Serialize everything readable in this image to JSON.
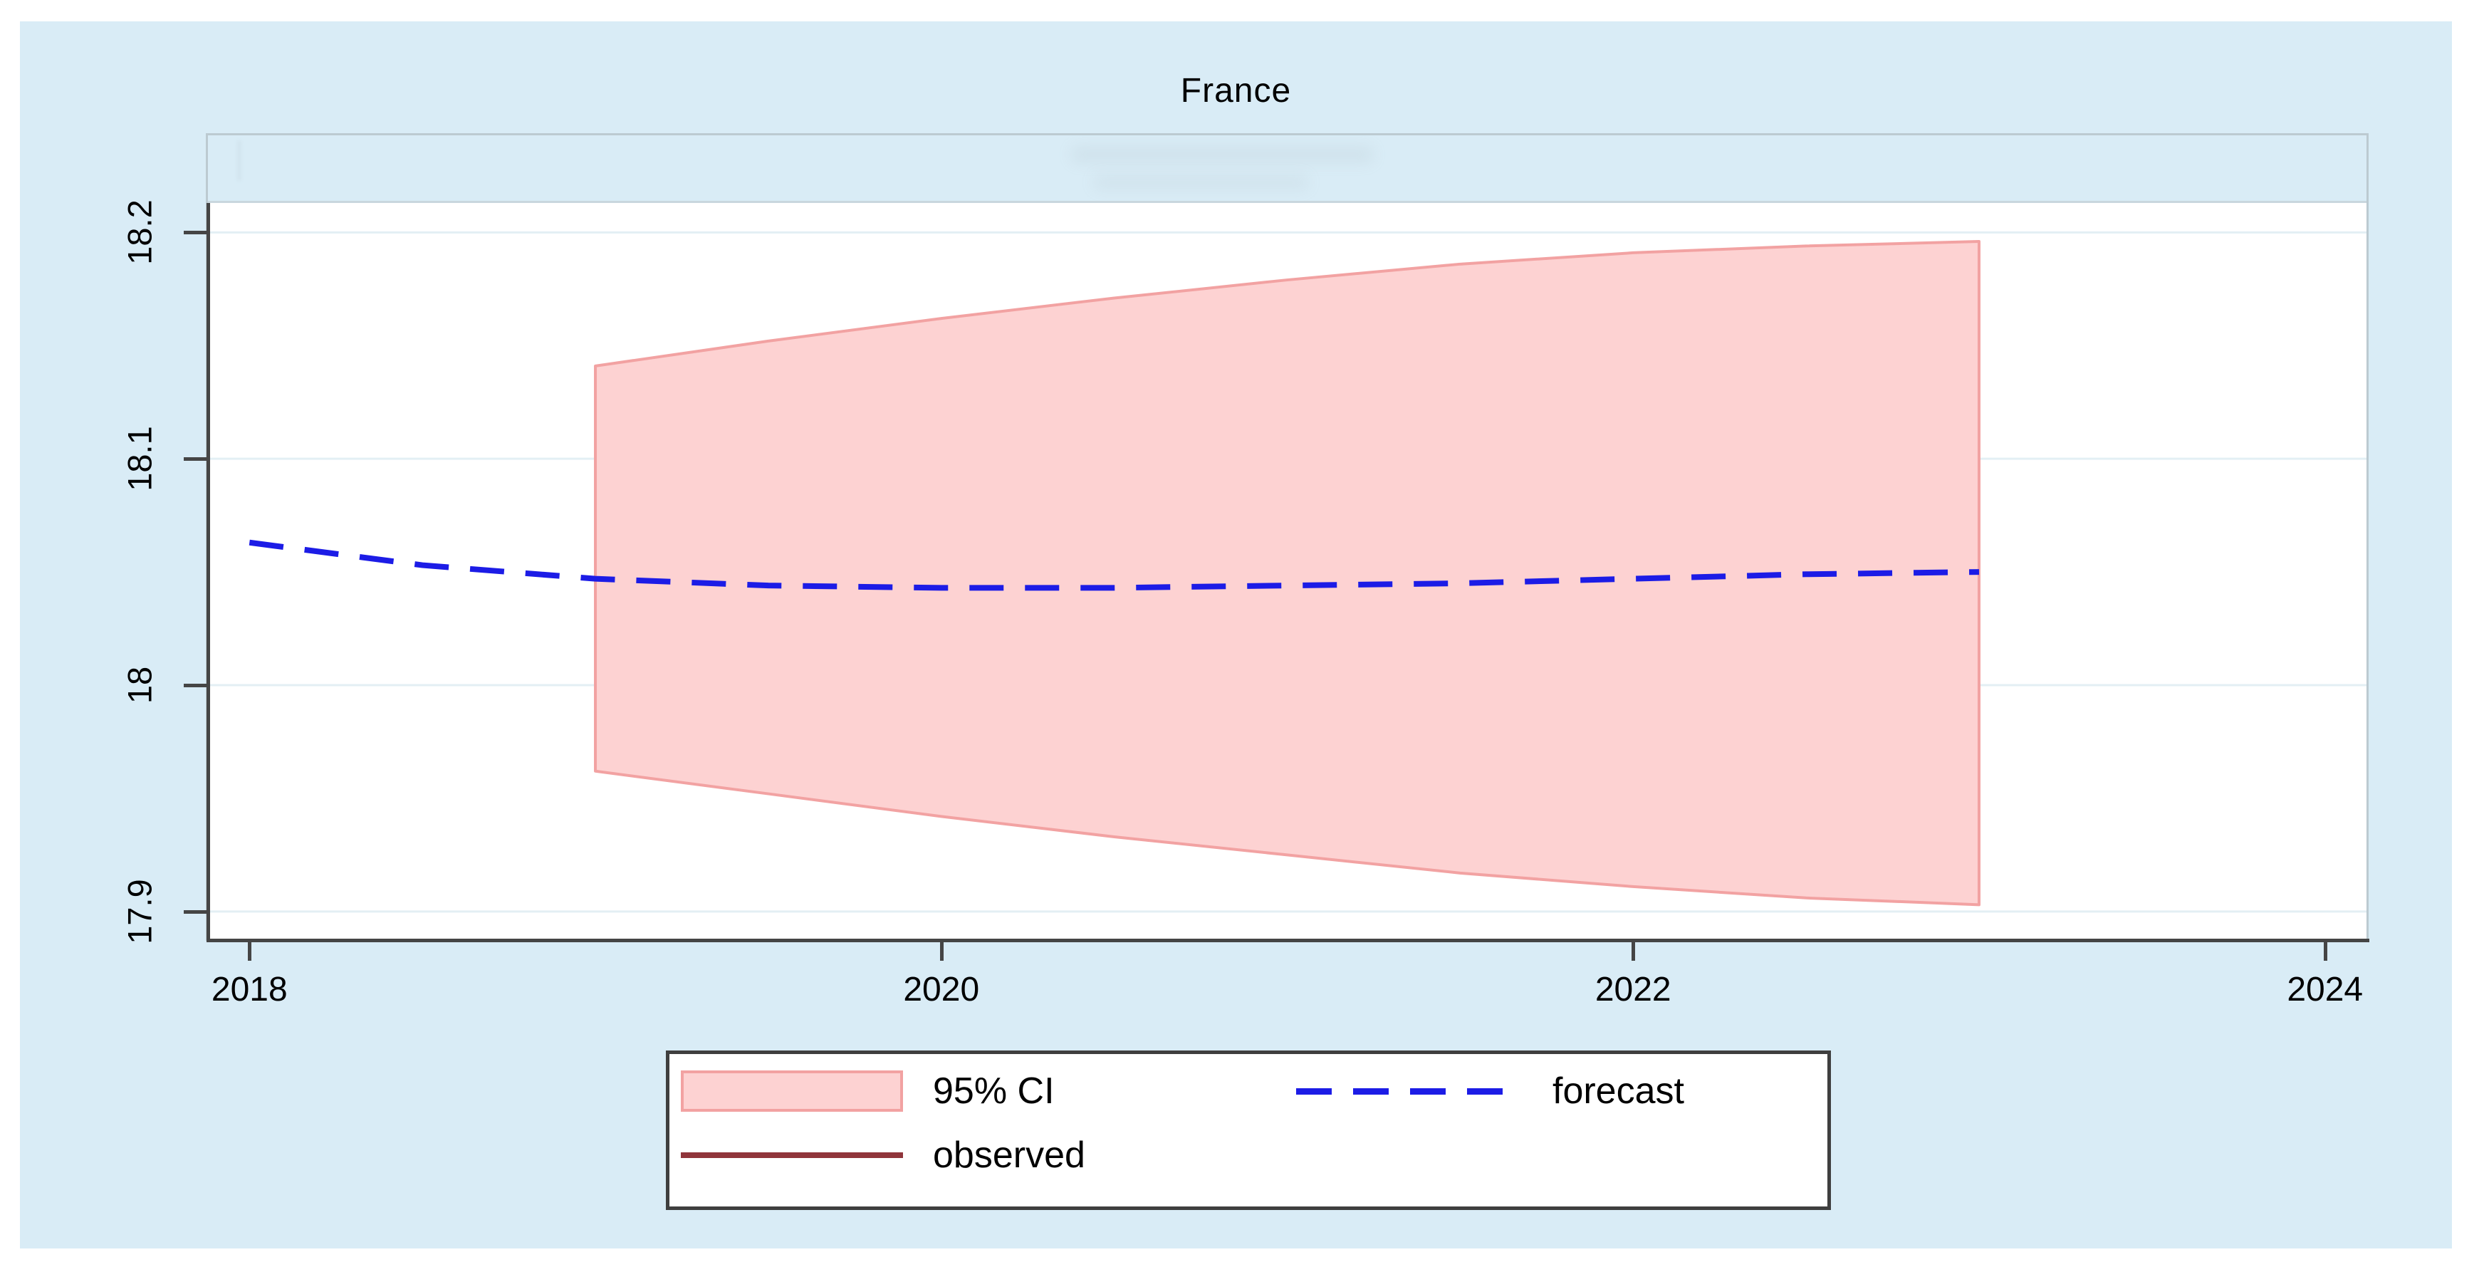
{
  "chart": {
    "title": "France"
  },
  "axes": {
    "y_tick_labels": [
      "18.2",
      "18.1",
      "18",
      "17.9"
    ],
    "x_tick_labels": [
      "2018",
      "2020",
      "2022",
      "2024"
    ]
  },
  "legend": {
    "items": [
      {
        "id": "ci",
        "label": "95% CI",
        "swatch": "pink-area-swatch"
      },
      {
        "id": "forecast",
        "label": "forecast",
        "swatch": "blue-dashed-line-swatch"
      },
      {
        "id": "observed",
        "label": "observed",
        "swatch": "maroon-solid-line-swatch"
      }
    ]
  },
  "colors": {
    "panel_background": "#d9ecf6",
    "plot_background": "#ffffff",
    "frame": "#bccad1",
    "axis": "#454545",
    "gridline": "#e3eff4",
    "text": "#000000",
    "ci_fill": "#fdd2d2",
    "ci_stroke": "#f2a2a2",
    "forecast_line": "#1c1ce6",
    "observed_line": "#90353b"
  },
  "chart_data": {
    "type": "area",
    "title": "France",
    "xlabel": "",
    "ylabel": "",
    "xlim": [
      2017.88,
      2024.12
    ],
    "ylim": [
      17.888,
      18.213
    ],
    "grid": true,
    "legend_position": "bottom-center",
    "xticks": [
      {
        "label": "2018",
        "value": 2018
      },
      {
        "label": "2020",
        "value": 2020
      },
      {
        "label": "2022",
        "value": 2022
      },
      {
        "label": "2024",
        "value": 2024
      }
    ],
    "yticks": [
      {
        "label": "18.2",
        "value": 18.2
      },
      {
        "label": "18.1",
        "value": 18.1
      },
      {
        "label": "18",
        "value": 18.0
      },
      {
        "label": "17.9",
        "value": 17.9
      }
    ],
    "series": [
      {
        "name": "95% CI",
        "type": "confidence-band",
        "fill": "#fdd2d2",
        "stroke": "#f2a2a2",
        "x": [
          2019,
          2019.5,
          2020,
          2020.5,
          2021,
          2021.5,
          2022,
          2022.5,
          2023
        ],
        "upper": [
          18.141,
          18.152,
          18.162,
          18.171,
          18.179,
          18.186,
          18.191,
          18.194,
          18.196
        ],
        "lower": [
          17.962,
          17.952,
          17.942,
          17.933,
          17.925,
          17.917,
          17.911,
          17.906,
          17.903
        ]
      },
      {
        "name": "forecast",
        "type": "line",
        "style": "dashed",
        "color": "#1c1ce6",
        "x": [
          2018,
          2018.5,
          2019,
          2019.5,
          2020,
          2020.5,
          2021,
          2021.5,
          2022,
          2022.5,
          2023
        ],
        "y": [
          18.063,
          18.053,
          18.047,
          18.044,
          18.043,
          18.043,
          18.044,
          18.045,
          18.047,
          18.049,
          18.05
        ]
      },
      {
        "name": "observed",
        "type": "line",
        "style": "solid",
        "color": "#90353b",
        "x": [],
        "y": []
      }
    ]
  }
}
